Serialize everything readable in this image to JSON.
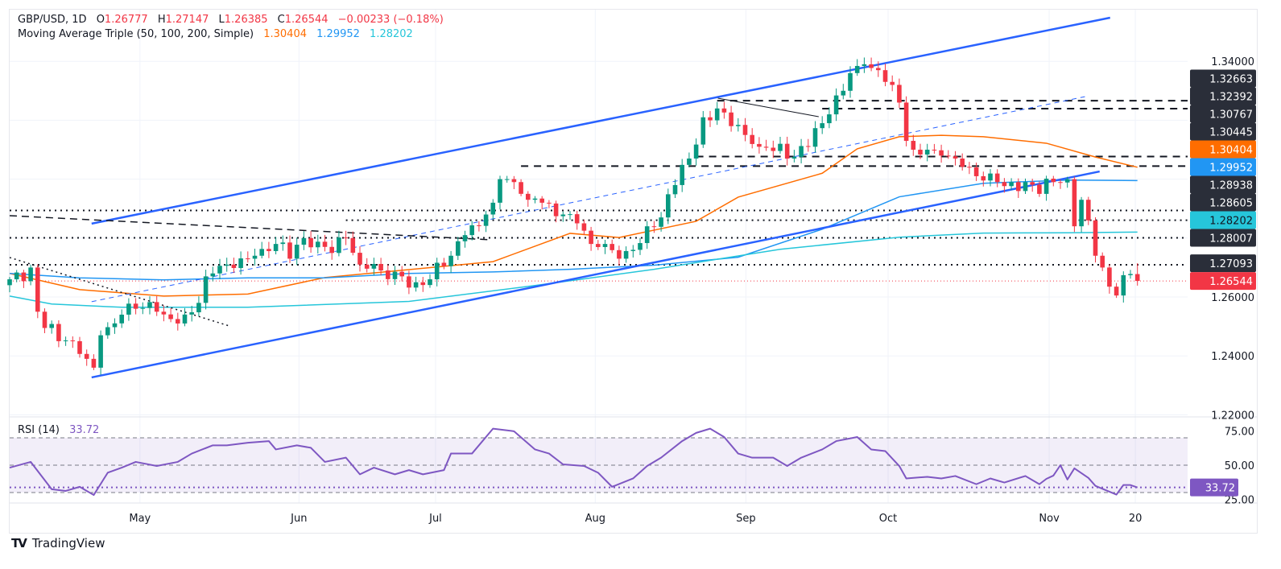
{
  "header": {
    "symbol": "GBP/USD, 1D",
    "open_label": "O",
    "open": "1.26777",
    "high_label": "H",
    "high": "1.27147",
    "low_label": "L",
    "low": "1.26385",
    "close_label": "C",
    "close": "1.26544",
    "change": "−0.00233 (−0.18%)",
    "ma_title": "Moving Average Triple (50, 100, 200, Simple)",
    "ma50": "1.30404",
    "ma100": "1.29952",
    "ma200": "1.28202"
  },
  "rsi_header": {
    "title": "RSI (14)",
    "value": "33.72"
  },
  "brand": {
    "name": "TradingView"
  },
  "colors": {
    "up": "#089981",
    "down": "#f23645",
    "ma50": "#ff6d00",
    "ma100": "#2196f3",
    "ma200": "#26c6da",
    "trend": "#2962ff",
    "rsi": "#7e57c2",
    "label_bg": "#2a2e39"
  },
  "chart_data": {
    "type": "candlestick",
    "symbol": "GBP/USD",
    "timeframe": "1D",
    "x_unit": "bar index (daily)",
    "xlim": [
      0,
      168
    ],
    "ylim": [
      1.2182,
      1.3585
    ],
    "close_waypoints": [
      [
        0,
        1.266
      ],
      [
        3,
        1.27
      ],
      [
        4,
        1.255
      ],
      [
        7,
        1.245
      ],
      [
        9,
        1.245
      ],
      [
        11,
        1.239
      ],
      [
        12,
        1.236
      ],
      [
        13,
        1.247
      ],
      [
        16,
        1.254
      ],
      [
        18,
        1.256
      ],
      [
        21,
        1.255
      ],
      [
        24,
        1.251
      ],
      [
        27,
        1.258
      ],
      [
        28,
        1.267
      ],
      [
        31,
        1.271
      ],
      [
        35,
        1.274
      ],
      [
        38,
        1.278
      ],
      [
        40,
        1.273
      ],
      [
        42,
        1.28
      ],
      [
        45,
        1.277
      ],
      [
        48,
        1.28
      ],
      [
        50,
        1.271
      ],
      [
        53,
        1.269
      ],
      [
        56,
        1.267
      ],
      [
        58,
        1.265
      ],
      [
        60,
        1.266
      ],
      [
        63,
        1.274
      ],
      [
        65,
        1.281
      ],
      [
        68,
        1.288
      ],
      [
        69,
        1.292
      ],
      [
        70,
        1.3
      ],
      [
        72,
        1.299
      ],
      [
        74,
        1.293
      ],
      [
        76,
        1.292
      ],
      [
        79,
        1.288
      ],
      [
        81,
        1.285
      ],
      [
        83,
        1.278
      ],
      [
        85,
        1.278
      ],
      [
        87,
        1.273
      ],
      [
        89,
        1.276
      ],
      [
        91,
        1.284
      ],
      [
        93,
        1.287
      ],
      [
        95,
        1.298
      ],
      [
        97,
        1.307
      ],
      [
        99,
        1.321
      ],
      [
        101,
        1.324
      ],
      [
        103,
        1.318
      ],
      [
        105,
        1.315
      ],
      [
        107,
        1.311
      ],
      [
        110,
        1.312
      ],
      [
        111,
        1.307
      ],
      [
        114,
        1.311
      ],
      [
        116,
        1.319
      ],
      [
        117,
        1.322
      ],
      [
        119,
        1.33
      ],
      [
        120,
        1.336
      ],
      [
        122,
        1.339
      ],
      [
        124,
        1.337
      ],
      [
        126,
        1.332
      ],
      [
        127,
        1.326
      ],
      [
        128,
        1.313
      ],
      [
        129,
        1.31
      ],
      [
        131,
        1.31
      ],
      [
        133,
        1.308
      ],
      [
        135,
        1.307
      ],
      [
        137,
        1.304
      ],
      [
        138,
        1.301
      ],
      [
        141,
        1.299
      ],
      [
        143,
        1.299
      ],
      [
        145,
        1.299
      ],
      [
        147,
        1.295
      ],
      [
        149,
        1.299
      ],
      [
        151,
        1.3
      ],
      [
        152,
        1.284
      ],
      [
        153,
        1.293
      ],
      [
        154,
        1.286
      ],
      [
        155,
        1.274
      ],
      [
        156,
        1.27
      ],
      [
        157,
        1.2635
      ],
      [
        158,
        1.2605
      ],
      [
        159,
        1.2674
      ],
      [
        160,
        1.2678
      ],
      [
        161,
        1.26544
      ]
    ],
    "last_candle": {
      "open": 1.26777,
      "high": 1.27147,
      "low": 1.26385,
      "close": 1.26544
    },
    "moving_averages": [
      {
        "name": "SMA 50",
        "color": "#ff6d00",
        "points": [
          [
            0,
            1.268
          ],
          [
            10,
            1.2625
          ],
          [
            22,
            1.2603
          ],
          [
            34,
            1.261
          ],
          [
            45,
            1.2666
          ],
          [
            57,
            1.2693
          ],
          [
            69,
            1.272
          ],
          [
            80,
            1.2816
          ],
          [
            87,
            1.2802
          ],
          [
            98,
            1.2857
          ],
          [
            104,
            1.2939
          ],
          [
            116,
            1.302
          ],
          [
            121,
            1.3103
          ],
          [
            127,
            1.3144
          ],
          [
            133,
            1.3149
          ],
          [
            139,
            1.3144
          ],
          [
            148,
            1.3122
          ],
          [
            155,
            1.3075
          ],
          [
            161,
            1.30404
          ]
        ]
      },
      {
        "name": "SMA 100",
        "color": "#2196f3",
        "points": [
          [
            0,
            1.268
          ],
          [
            10,
            1.2665
          ],
          [
            22,
            1.2658
          ],
          [
            34,
            1.2665
          ],
          [
            45,
            1.2665
          ],
          [
            57,
            1.268
          ],
          [
            69,
            1.2685
          ],
          [
            80,
            1.2694
          ],
          [
            92,
            1.2708
          ],
          [
            104,
            1.2735
          ],
          [
            116,
            1.283
          ],
          [
            127,
            1.294
          ],
          [
            139,
            1.2986
          ],
          [
            151,
            1.2997
          ],
          [
            161,
            1.29952
          ]
        ]
      },
      {
        "name": "SMA 200",
        "color": "#26c6da",
        "points": [
          [
            0,
            1.2603
          ],
          [
            6,
            1.2576
          ],
          [
            16,
            1.2565
          ],
          [
            34,
            1.2565
          ],
          [
            57,
            1.2585
          ],
          [
            75,
            1.2639
          ],
          [
            92,
            1.2694
          ],
          [
            110,
            1.2762
          ],
          [
            127,
            1.2803
          ],
          [
            139,
            1.2817
          ],
          [
            151,
            1.2818
          ],
          [
            161,
            1.28202
          ]
        ]
      }
    ],
    "trendlines": [
      {
        "name": "channel-upper",
        "style": "solid-thick",
        "from": [
          11.7,
          1.2849
        ],
        "to": [
          157.1,
          1.3548
        ]
      },
      {
        "name": "channel-lower",
        "style": "solid-thick",
        "from": [
          11.7,
          1.2327
        ],
        "to": [
          155.6,
          1.3026
        ]
      },
      {
        "name": "channel-mid",
        "style": "dashed-blue",
        "from": [
          11.7,
          1.2584
        ],
        "to": [
          153.5,
          1.328
        ]
      },
      {
        "name": "resistance-dashed",
        "style": "dashed-black",
        "from": [
          0,
          1.2876
        ],
        "to": [
          68.8,
          1.2794
        ]
      },
      {
        "name": "support-dotted",
        "style": "dotted-black",
        "from": [
          0,
          1.2734
        ],
        "to": [
          31.3,
          1.2502
        ]
      },
      {
        "name": "top-connector",
        "style": "thin-black",
        "from": [
          101.1,
          1.3275
        ],
        "to": [
          115.5,
          1.3212
        ]
      }
    ],
    "horizontal_levels": [
      {
        "price": 1.32663,
        "style": "dashed",
        "from": 101
      },
      {
        "price": 1.32392,
        "style": "dashed",
        "from": 116
      },
      {
        "price": 1.30767,
        "style": "dashed",
        "from": 98
      },
      {
        "price": 1.30445,
        "style": "dashed",
        "from": 73
      },
      {
        "price": 1.28938,
        "style": "dotted",
        "from": 0
      },
      {
        "price": 1.28605,
        "style": "dotted",
        "from": 48
      },
      {
        "price": 1.28007,
        "style": "dotted",
        "from": 0
      },
      {
        "price": 1.27093,
        "style": "dotted",
        "from": 0
      },
      {
        "price": 1.26544,
        "style": "dotted-red",
        "from": 0
      }
    ],
    "price_axis_ticks": [
      "1.34000",
      "1.26000",
      "1.24000",
      "1.22000"
    ],
    "grid_prices": [
      1.34,
      1.32,
      1.3,
      1.28,
      1.26,
      1.24,
      1.22
    ],
    "price_labels": [
      {
        "text": "1.32663",
        "bg": "#2a2e39",
        "fg": "#ffffff"
      },
      {
        "text": "1.32392",
        "bg": "#2a2e39",
        "fg": "#ffffff"
      },
      {
        "text": "1.30767",
        "bg": "#2a2e39",
        "fg": "#ffffff"
      },
      {
        "text": "1.30445",
        "bg": "#2a2e39",
        "fg": "#ffffff"
      },
      {
        "text": "1.30404",
        "bg": "#ff6d00",
        "fg": "#ffffff"
      },
      {
        "text": "1.29952",
        "bg": "#2196f3",
        "fg": "#ffffff"
      },
      {
        "text": "1.28938",
        "bg": "#2a2e39",
        "fg": "#ffffff"
      },
      {
        "text": "1.28605",
        "bg": "#2a2e39",
        "fg": "#ffffff"
      },
      {
        "text": "1.28202",
        "bg": "#26c6da",
        "fg": "#131722"
      },
      {
        "text": "1.28007",
        "bg": "#2a2e39",
        "fg": "#ffffff"
      },
      {
        "text": "1.27093",
        "bg": "#2a2e39",
        "fg": "#ffffff"
      },
      {
        "text": "1.26544",
        "bg": "#f23645",
        "fg": "#ffffff"
      }
    ],
    "time_axis": [
      {
        "label": "May",
        "x": 18.6
      },
      {
        "label": "Jun",
        "x": 41.3
      },
      {
        "label": "Jul",
        "x": 60.8
      },
      {
        "label": "Aug",
        "x": 83.6
      },
      {
        "label": "Sep",
        "x": 105.1
      },
      {
        "label": "Oct",
        "x": 125.4
      },
      {
        "label": "Nov",
        "x": 148.4
      },
      {
        "label": "20",
        "x": 160.7
      }
    ],
    "rsi": {
      "period": 14,
      "levels": [
        70,
        50,
        30
      ],
      "axis_ticks": [
        "75.00",
        "50.00",
        "25.00"
      ],
      "current": 33.72,
      "points": [
        [
          0,
          48.2
        ],
        [
          3,
          52.4
        ],
        [
          6,
          32.4
        ],
        [
          8,
          31.2
        ],
        [
          10,
          34.2
        ],
        [
          12,
          28.2
        ],
        [
          14,
          44.5
        ],
        [
          16,
          48.2
        ],
        [
          18,
          52.4
        ],
        [
          21,
          49.4
        ],
        [
          24,
          52.4
        ],
        [
          26,
          58.5
        ],
        [
          29,
          64.5
        ],
        [
          31,
          64.5
        ],
        [
          34,
          66.4
        ],
        [
          37,
          67.6
        ],
        [
          38,
          61.5
        ],
        [
          41,
          64.5
        ],
        [
          43,
          62.7
        ],
        [
          45,
          52.4
        ],
        [
          48,
          55.5
        ],
        [
          50,
          43.3
        ],
        [
          52,
          48.2
        ],
        [
          55,
          43.3
        ],
        [
          57,
          46.4
        ],
        [
          59,
          43.3
        ],
        [
          62,
          46.4
        ],
        [
          63,
          58.5
        ],
        [
          66,
          58.5
        ],
        [
          69,
          76.7
        ],
        [
          72,
          74.8
        ],
        [
          75,
          61.5
        ],
        [
          77,
          58.5
        ],
        [
          79,
          50.6
        ],
        [
          82,
          49.4
        ],
        [
          84,
          44.5
        ],
        [
          86,
          34.2
        ],
        [
          89,
          40.3
        ],
        [
          91,
          49.4
        ],
        [
          93,
          55.5
        ],
        [
          96,
          67.6
        ],
        [
          98,
          73.6
        ],
        [
          100,
          76.7
        ],
        [
          102,
          70.6
        ],
        [
          104,
          58.5
        ],
        [
          106,
          55.5
        ],
        [
          109,
          55.5
        ],
        [
          111,
          49.4
        ],
        [
          113,
          55.5
        ],
        [
          116,
          61.5
        ],
        [
          118,
          67.6
        ],
        [
          121,
          70.6
        ],
        [
          123,
          61.5
        ],
        [
          125,
          60.3
        ],
        [
          127,
          49.4
        ],
        [
          128,
          40.3
        ],
        [
          131,
          41.5
        ],
        [
          133,
          40.3
        ],
        [
          135,
          42.1
        ],
        [
          138,
          36.1
        ],
        [
          140,
          40.3
        ],
        [
          142,
          37.3
        ],
        [
          145,
          42.1
        ],
        [
          147,
          36.1
        ],
        [
          148,
          40.0
        ],
        [
          149,
          42.4
        ],
        [
          150,
          50.0
        ],
        [
          151,
          39.5
        ],
        [
          152,
          47.7
        ],
        [
          154,
          40.7
        ],
        [
          155,
          34.9
        ],
        [
          158,
          28.5
        ],
        [
          159,
          35.5
        ],
        [
          160,
          35.5
        ],
        [
          161,
          33.72
        ]
      ]
    }
  }
}
